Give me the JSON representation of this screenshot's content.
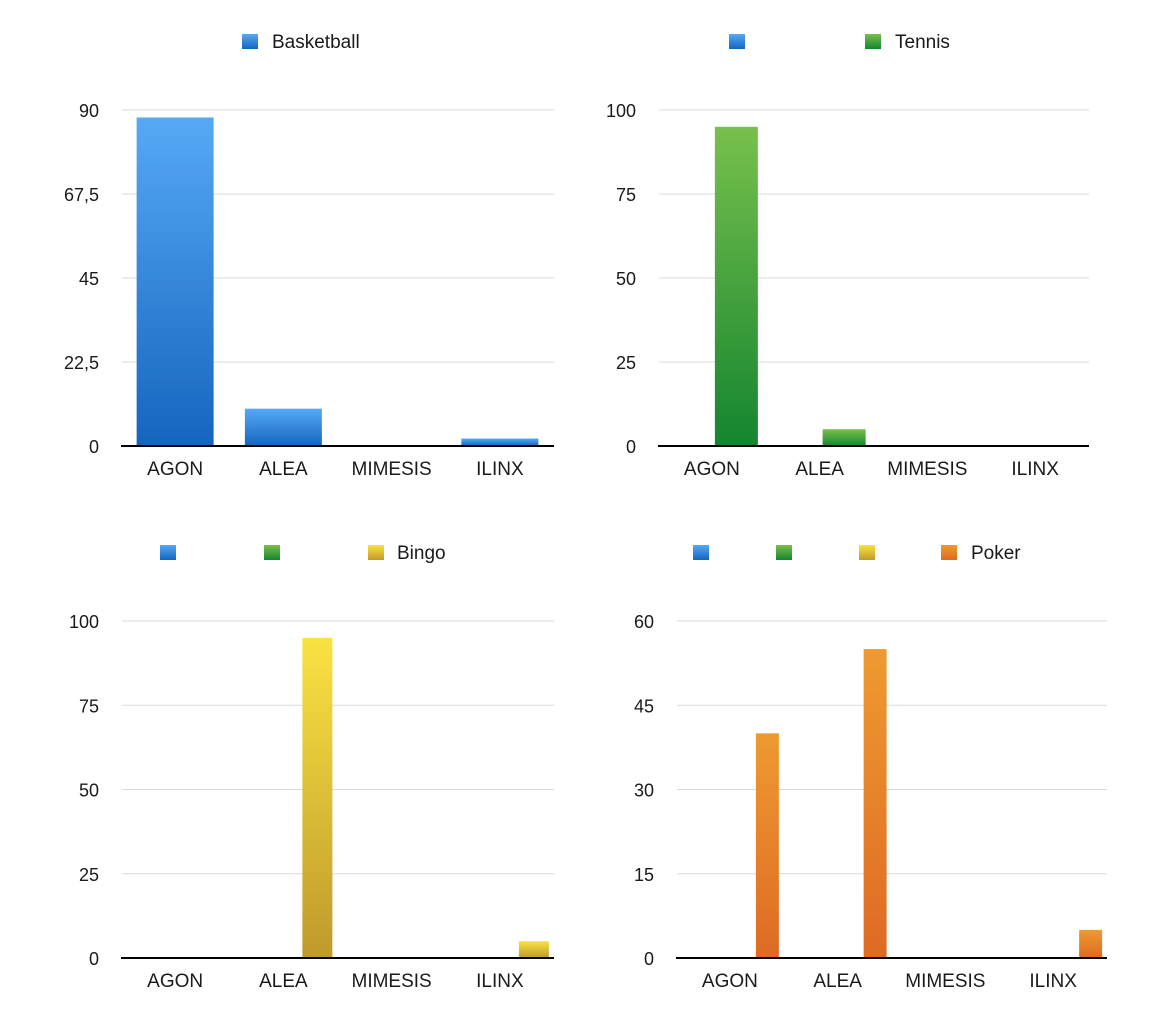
{
  "colors": {
    "Basketball": [
      "#56a9f5",
      "#1565bf"
    ],
    "Tennis": [
      "#78c04c",
      "#148530"
    ],
    "Bingo": [
      "#fae242",
      "#bf9a2c"
    ],
    "Poker": [
      "#ee9a30",
      "#de6a24"
    ],
    "grid": "#d9d9d9",
    "axis": "#000000"
  },
  "chart_data": [
    {
      "type": "bar",
      "title": "",
      "categories": [
        "AGON",
        "ALEA",
        "MIMESIS",
        "ILINX"
      ],
      "legend": [
        {
          "name": "Basketball",
          "label": "Basketball"
        }
      ],
      "series": [
        {
          "name": "Basketball",
          "values": [
            88,
            10,
            0,
            2
          ]
        }
      ],
      "yticks": [
        "0",
        "22,5",
        "45",
        "67,5",
        "90"
      ],
      "ylim": [
        0,
        90
      ],
      "grid": true,
      "legend_position": "top"
    },
    {
      "type": "bar",
      "title": "",
      "categories": [
        "AGON",
        "ALEA",
        "MIMESIS",
        "ILINX"
      ],
      "legend": [
        {
          "name": "Basketball",
          "label": ""
        },
        {
          "name": "Tennis",
          "label": "Tennis"
        }
      ],
      "series": [
        {
          "name": "Basketball",
          "values": [
            0,
            0,
            0,
            0
          ]
        },
        {
          "name": "Tennis",
          "values": [
            95,
            5,
            0,
            0
          ]
        }
      ],
      "yticks": [
        "0",
        "25",
        "50",
        "75",
        "100"
      ],
      "ylim": [
        0,
        100
      ],
      "grid": true,
      "legend_position": "top"
    },
    {
      "type": "bar",
      "title": "",
      "categories": [
        "AGON",
        "ALEA",
        "MIMESIS",
        "ILINX"
      ],
      "legend": [
        {
          "name": "Basketball",
          "label": ""
        },
        {
          "name": "Tennis",
          "label": ""
        },
        {
          "name": "Bingo",
          "label": "Bingo"
        }
      ],
      "series": [
        {
          "name": "Basketball",
          "values": [
            0,
            0,
            0,
            0
          ]
        },
        {
          "name": "Tennis",
          "values": [
            0,
            0,
            0,
            0
          ]
        },
        {
          "name": "Bingo",
          "values": [
            0,
            95,
            0,
            5
          ]
        }
      ],
      "yticks": [
        "0",
        "25",
        "50",
        "75",
        "100"
      ],
      "ylim": [
        0,
        100
      ],
      "grid": true,
      "legend_position": "top"
    },
    {
      "type": "bar",
      "title": "",
      "categories": [
        "AGON",
        "ALEA",
        "MIMESIS",
        "ILINX"
      ],
      "legend": [
        {
          "name": "Basketball",
          "label": ""
        },
        {
          "name": "Tennis",
          "label": ""
        },
        {
          "name": "Bingo",
          "label": ""
        },
        {
          "name": "Poker",
          "label": "Poker"
        }
      ],
      "series": [
        {
          "name": "Basketball",
          "values": [
            0,
            0,
            0,
            0
          ]
        },
        {
          "name": "Tennis",
          "values": [
            0,
            0,
            0,
            0
          ]
        },
        {
          "name": "Bingo",
          "values": [
            0,
            0,
            0,
            0
          ]
        },
        {
          "name": "Poker",
          "values": [
            40,
            55,
            0,
            5
          ]
        }
      ],
      "yticks": [
        "0",
        "15",
        "30",
        "45",
        "60"
      ],
      "ylim": [
        0,
        60
      ],
      "grid": true,
      "legend_position": "top"
    }
  ]
}
